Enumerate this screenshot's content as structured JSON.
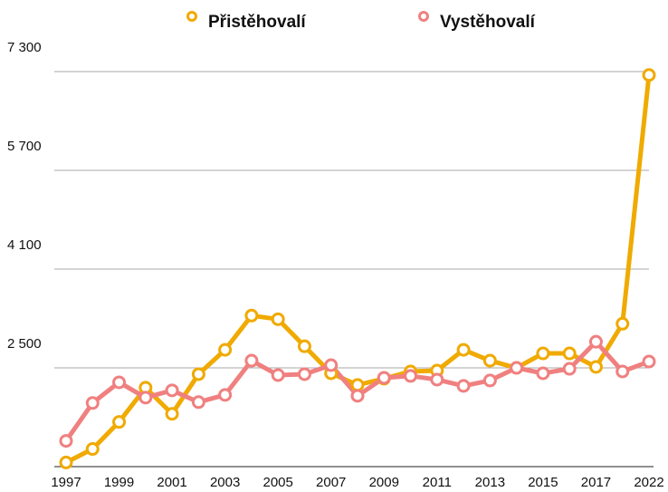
{
  "chart_data": {
    "type": "line",
    "categories": [
      1997,
      null,
      1999,
      null,
      2001,
      null,
      2003,
      null,
      2005,
      null,
      2007,
      null,
      2009,
      null,
      2011,
      null,
      2013,
      null,
      2015,
      null,
      2017,
      null,
      2022
    ],
    "series": [
      {
        "name": "Přistěhovalí",
        "color": "#f0aa00",
        "values": [
          967,
          1186,
          1624,
          2179,
          1755,
          2398,
          2792,
          3347,
          3288,
          2850,
          2412,
          2223,
          2325,
          2442,
          2456,
          2792,
          2617,
          2500,
          2734,
          2734,
          2515,
          3215,
          7245
        ]
      },
      {
        "name": "Vystěhovalí",
        "color": "#f08080",
        "values": [
          1317,
          1931,
          2266,
          2018,
          2135,
          1945,
          2062,
          2617,
          2383,
          2398,
          2544,
          2047,
          2339,
          2369,
          2310,
          2208,
          2296,
          2500,
          2412,
          2485,
          2923,
          2442,
          2602
        ]
      }
    ],
    "ylim": [
      900,
      7300
    ],
    "yticks": [
      {
        "value": 2500,
        "label": "2 500"
      },
      {
        "value": 4100,
        "label": "4 100"
      },
      {
        "value": 5700,
        "label": "5 700"
      },
      {
        "value": 7300,
        "label": "7 300"
      }
    ],
    "grid": true,
    "legend": "top"
  }
}
